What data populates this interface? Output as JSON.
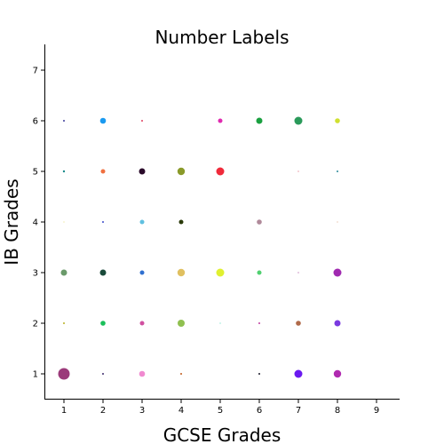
{
  "chart_data": {
    "type": "scatter",
    "title": "Number Labels",
    "xlabel": "GCSE Grades",
    "ylabel": "IB Grades",
    "xlim": [
      0.5,
      9.5
    ],
    "ylim": [
      0.5,
      7.5
    ],
    "xticks": [
      "1",
      "2",
      "3",
      "4",
      "5",
      "6",
      "7",
      "8",
      "9"
    ],
    "yticks": [
      "1",
      "2",
      "3",
      "4",
      "5",
      "6",
      "7"
    ],
    "grid": false,
    "points": [
      {
        "x": 1,
        "y": 1,
        "size": 6.5,
        "color": "#9b3a7a"
      },
      {
        "x": 1,
        "y": 2,
        "size": 1.0,
        "color": "#b8b020"
      },
      {
        "x": 1,
        "y": 3,
        "size": 3.5,
        "color": "#6a9a6a"
      },
      {
        "x": 1,
        "y": 4,
        "size": 0.6,
        "color": "#e8e080"
      },
      {
        "x": 1,
        "y": 5,
        "size": 1.2,
        "color": "#1a8a8a"
      },
      {
        "x": 1,
        "y": 6,
        "size": 1.0,
        "color": "#3a3a9a"
      },
      {
        "x": 2,
        "y": 1,
        "size": 1.0,
        "color": "#3a2a6a"
      },
      {
        "x": 2,
        "y": 2,
        "size": 2.8,
        "color": "#1abf5a"
      },
      {
        "x": 2,
        "y": 3,
        "size": 3.5,
        "color": "#1a4a3a"
      },
      {
        "x": 2,
        "y": 4,
        "size": 1.0,
        "color": "#3a4aca"
      },
      {
        "x": 2,
        "y": 5,
        "size": 2.5,
        "color": "#f07040"
      },
      {
        "x": 2,
        "y": 6,
        "size": 3.3,
        "color": "#1a9af0"
      },
      {
        "x": 3,
        "y": 1,
        "size": 3.3,
        "color": "#f08ad0"
      },
      {
        "x": 3,
        "y": 2,
        "size": 2.5,
        "color": "#d050a0"
      },
      {
        "x": 3,
        "y": 3,
        "size": 2.5,
        "color": "#3070d0"
      },
      {
        "x": 3,
        "y": 4,
        "size": 2.5,
        "color": "#60c0e0"
      },
      {
        "x": 3,
        "y": 5,
        "size": 3.5,
        "color": "#2a0a2a"
      },
      {
        "x": 3,
        "y": 6,
        "size": 1.0,
        "color": "#e04060"
      },
      {
        "x": 4,
        "y": 1,
        "size": 1.0,
        "color": "#c05a1a"
      },
      {
        "x": 4,
        "y": 2,
        "size": 4.0,
        "color": "#90c050"
      },
      {
        "x": 4,
        "y": 3,
        "size": 4.2,
        "color": "#e0c060"
      },
      {
        "x": 4,
        "y": 4,
        "size": 2.5,
        "color": "#2a3a0a"
      },
      {
        "x": 4,
        "y": 5,
        "size": 4.2,
        "color": "#8a9a2a"
      },
      {
        "x": 5,
        "y": 2,
        "size": 0.6,
        "color": "#60e0c0"
      },
      {
        "x": 5,
        "y": 3,
        "size": 4.5,
        "color": "#e0f030"
      },
      {
        "x": 5,
        "y": 5,
        "size": 4.5,
        "color": "#f02a3a"
      },
      {
        "x": 5,
        "y": 6,
        "size": 2.5,
        "color": "#e02ab0"
      },
      {
        "x": 6,
        "y": 1,
        "size": 1.0,
        "color": "#1a1a2a"
      },
      {
        "x": 6,
        "y": 2,
        "size": 1.0,
        "color": "#c03aa0"
      },
      {
        "x": 6,
        "y": 3,
        "size": 2.5,
        "color": "#50d070"
      },
      {
        "x": 6,
        "y": 4,
        "size": 2.8,
        "color": "#b08a9a"
      },
      {
        "x": 6,
        "y": 6,
        "size": 3.5,
        "color": "#1aa040"
      },
      {
        "x": 7,
        "y": 1,
        "size": 4.5,
        "color": "#6a1af0"
      },
      {
        "x": 7,
        "y": 2,
        "size": 2.8,
        "color": "#b06a4a"
      },
      {
        "x": 7,
        "y": 3,
        "size": 0.6,
        "color": "#b050a0"
      },
      {
        "x": 7,
        "y": 5,
        "size": 0.6,
        "color": "#e06a7a"
      },
      {
        "x": 7,
        "y": 6,
        "size": 4.5,
        "color": "#2a9a5a"
      },
      {
        "x": 8,
        "y": 1,
        "size": 4.2,
        "color": "#b02ab0"
      },
      {
        "x": 8,
        "y": 2,
        "size": 3.5,
        "color": "#7a3ae0"
      },
      {
        "x": 8,
        "y": 3,
        "size": 4.5,
        "color": "#a02ab0"
      },
      {
        "x": 8,
        "y": 4,
        "size": 0.6,
        "color": "#e0b090"
      },
      {
        "x": 8,
        "y": 5,
        "size": 1.0,
        "color": "#2a8a9a"
      },
      {
        "x": 8,
        "y": 6,
        "size": 2.8,
        "color": "#d0e030"
      }
    ]
  }
}
